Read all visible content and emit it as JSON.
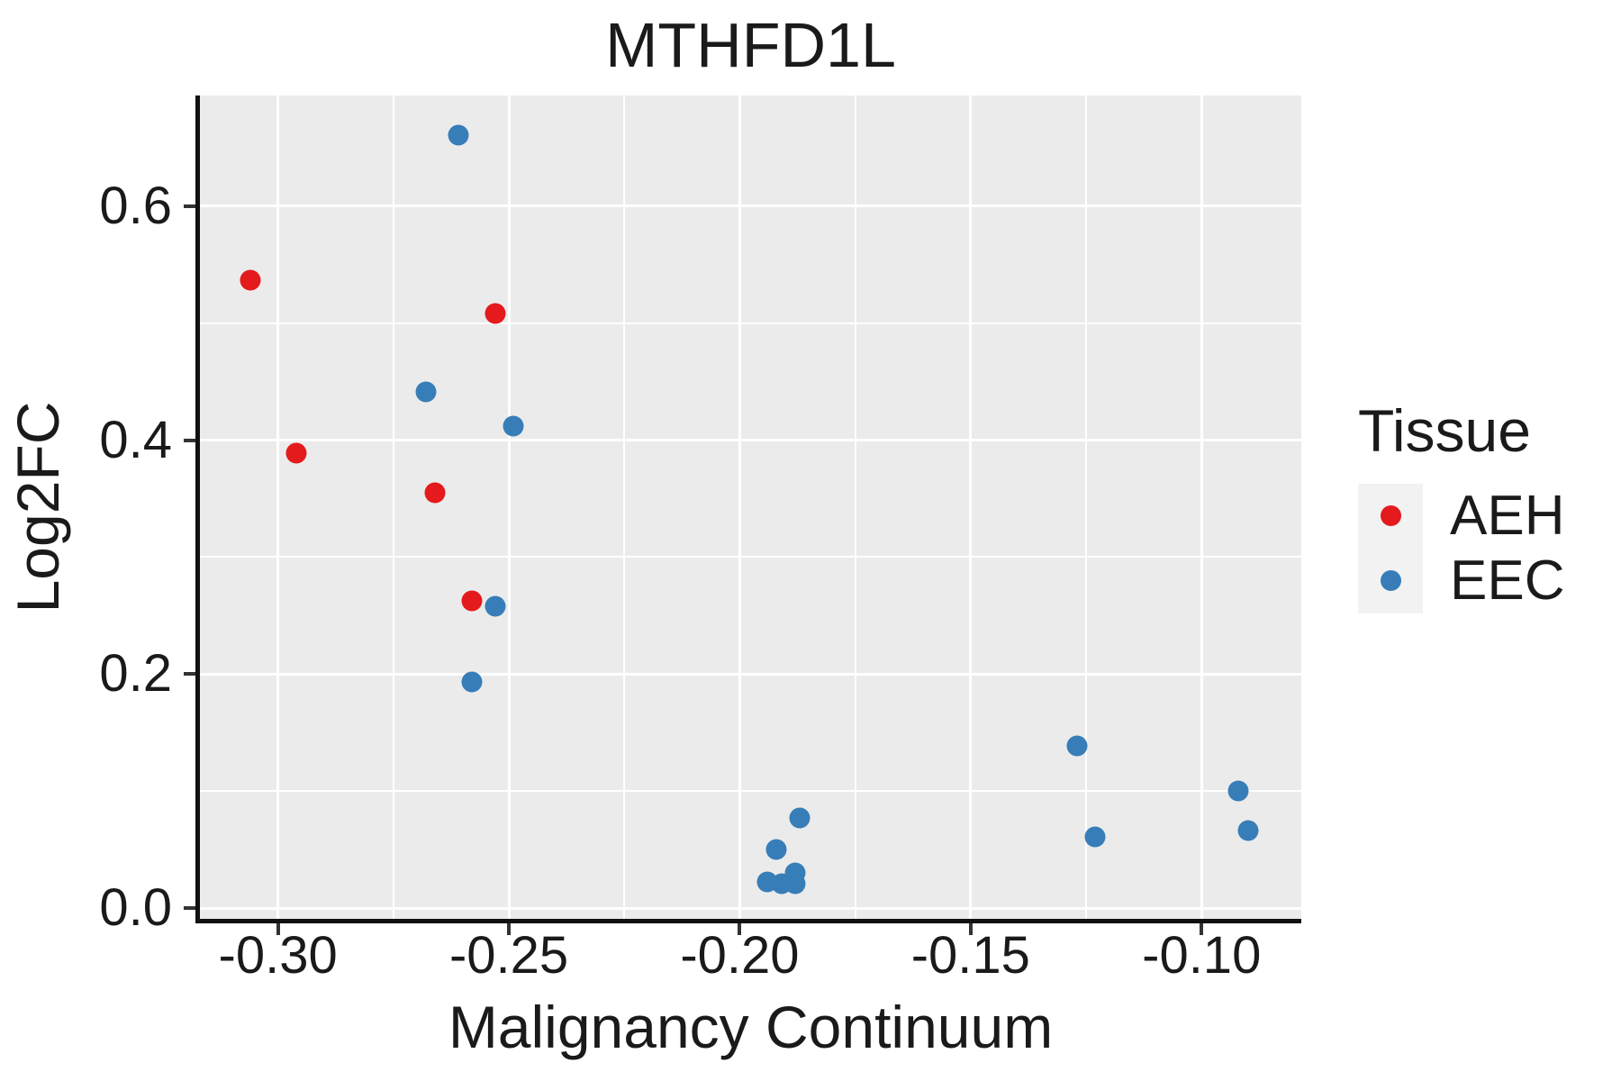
{
  "chart_data": {
    "type": "scatter",
    "title": "MTHFD1L",
    "xlabel": "Malignancy Continuum",
    "ylabel": "Log2FC",
    "xlim": [
      -0.3169,
      -0.0784
    ],
    "ylim": [
      -0.0092,
      0.6946
    ],
    "x_ticks": [
      -0.3,
      -0.25,
      -0.2,
      -0.15,
      -0.1
    ],
    "x_tick_labels": [
      "-0.30",
      "-0.25",
      "-0.20",
      "-0.15",
      "-0.10"
    ],
    "x_minor_gridlines": [
      -0.275,
      -0.225,
      -0.175,
      -0.125
    ],
    "y_ticks": [
      0.0,
      0.2,
      0.4,
      0.6
    ],
    "y_tick_labels": [
      "0.0",
      "0.2",
      "0.4",
      "0.6"
    ],
    "y_minor_gridlines": [
      0.1,
      0.3,
      0.5
    ],
    "grid": "on",
    "panel_background_color": "#EBEBEB",
    "gridline_color": "#FFFFFF",
    "axis_line_color": "#111111",
    "legend": {
      "title": "Tissue",
      "position": "right",
      "items": [
        {
          "label": "AEH",
          "color": "#E41A1C"
        },
        {
          "label": "EEC",
          "color": "#377EB8"
        }
      ]
    },
    "series": [
      {
        "name": "AEH",
        "color": "#E41A1C",
        "points": [
          [
            -0.306,
            0.537
          ],
          [
            -0.296,
            0.389
          ],
          [
            -0.266,
            0.355
          ],
          [
            -0.253,
            0.508
          ],
          [
            -0.258,
            0.263
          ]
        ]
      },
      {
        "name": "EEC",
        "color": "#377EB8",
        "points": [
          [
            -0.261,
            0.661
          ],
          [
            -0.268,
            0.441
          ],
          [
            -0.249,
            0.412
          ],
          [
            -0.253,
            0.258
          ],
          [
            -0.258,
            0.193
          ],
          [
            -0.194,
            0.022
          ],
          [
            -0.192,
            0.05
          ],
          [
            -0.191,
            0.021
          ],
          [
            -0.188,
            0.03
          ],
          [
            -0.188,
            0.021
          ],
          [
            -0.187,
            0.077
          ],
          [
            -0.127,
            0.139
          ],
          [
            -0.123,
            0.061
          ],
          [
            -0.092,
            0.1
          ],
          [
            -0.09,
            0.066
          ]
        ]
      }
    ]
  }
}
